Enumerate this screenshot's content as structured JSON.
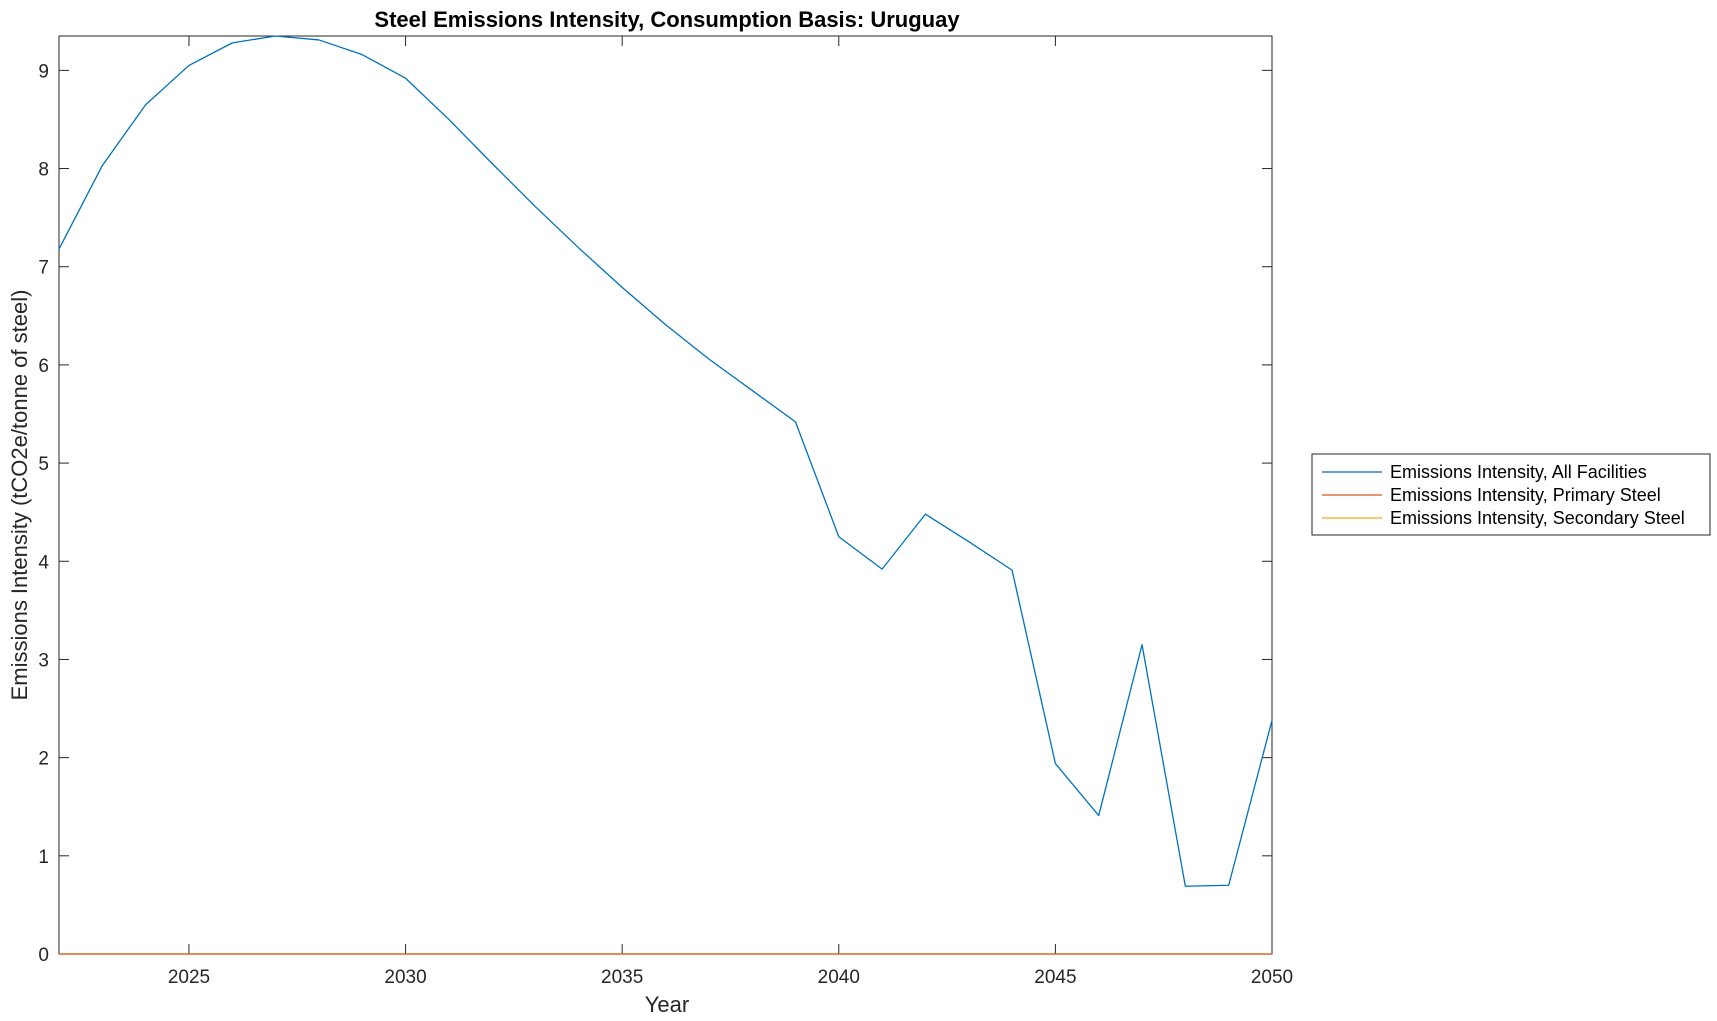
{
  "chart_data": {
    "type": "line",
    "title": "Steel Emissions Intensity, Consumption Basis: Uruguay",
    "xlabel": "Year",
    "ylabel": "Emissions Intensity (tCO2e/tonne of steel)",
    "xlim": [
      2022,
      2050
    ],
    "ylim": [
      0,
      9.35
    ],
    "xticks": [
      2025,
      2030,
      2035,
      2040,
      2045,
      2050
    ],
    "yticks": [
      0,
      1,
      2,
      3,
      4,
      5,
      6,
      7,
      8,
      9
    ],
    "x": [
      2022,
      2023,
      2024,
      2025,
      2026,
      2027,
      2028,
      2029,
      2030,
      2031,
      2032,
      2033,
      2034,
      2035,
      2036,
      2037,
      2038,
      2039,
      2040,
      2041,
      2042,
      2043,
      2044,
      2045,
      2046,
      2047,
      2048,
      2049,
      2050
    ],
    "series": [
      {
        "name": "Emissions Intensity, All Facilities",
        "color": "#0072BD",
        "values": [
          7.18,
          8.03,
          8.65,
          9.05,
          9.28,
          9.35,
          9.31,
          9.16,
          8.92,
          8.5,
          8.05,
          7.61,
          7.19,
          6.79,
          6.41,
          6.06,
          5.74,
          5.42,
          4.25,
          3.92,
          4.48,
          4.2,
          3.91,
          1.94,
          1.41,
          3.15,
          0.69,
          0.7,
          2.38
        ]
      },
      {
        "name": "Emissions Intensity, Primary Steel",
        "color": "#D95319",
        "values": [
          0,
          0,
          0,
          0,
          0,
          0,
          0,
          0,
          0,
          0,
          0,
          0,
          0,
          0,
          0,
          0,
          0,
          0,
          0,
          0,
          0,
          0,
          0,
          0,
          0,
          0,
          0,
          0,
          0
        ]
      },
      {
        "name": "Emissions Intensity, Secondary Steel",
        "color": "#EDB120",
        "values": [
          0,
          0,
          0,
          0,
          0,
          0,
          0,
          0,
          0,
          0,
          0,
          0,
          0,
          0,
          0,
          0,
          0,
          0,
          0,
          0,
          0,
          0,
          0,
          0,
          0,
          0,
          0,
          0,
          0
        ]
      }
    ],
    "grid": false,
    "legend_position": "outside-right"
  }
}
